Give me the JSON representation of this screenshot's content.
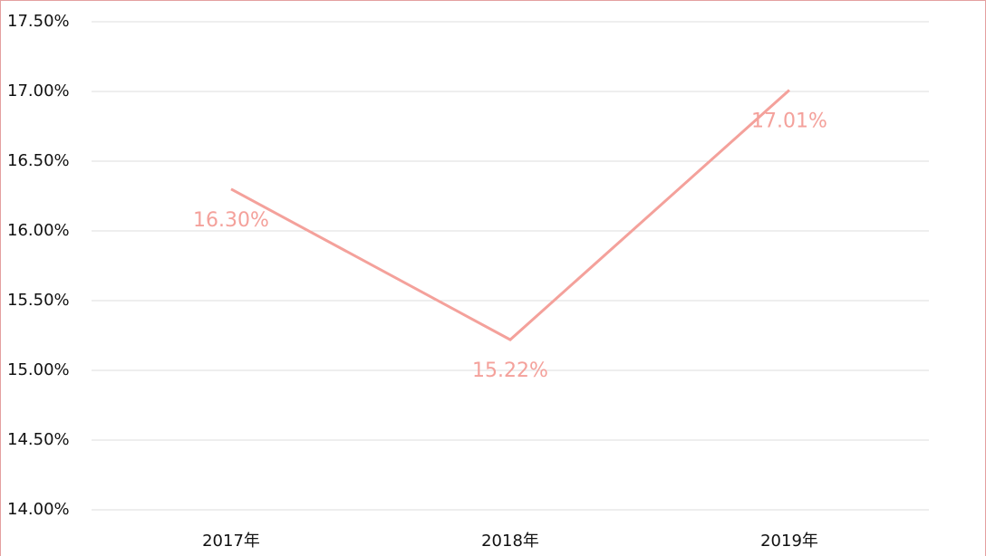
{
  "chart_data": {
    "type": "line",
    "categories": [
      "2017年",
      "2018年",
      "2019年"
    ],
    "series": [
      {
        "color": "#f4a19b",
        "values": [
          16.3,
          15.22,
          17.01
        ],
        "value_labels": [
          "16.30%",
          "15.22%",
          "17.01%"
        ]
      }
    ],
    "ylim": [
      14.0,
      17.5
    ],
    "yticks": [
      {
        "value": 14.0,
        "label": "14.00%"
      },
      {
        "value": 14.5,
        "label": "14.50%"
      },
      {
        "value": 15.0,
        "label": "15.00%"
      },
      {
        "value": 15.5,
        "label": "15.50%"
      },
      {
        "value": 16.0,
        "label": "16.00%"
      },
      {
        "value": 16.5,
        "label": "16.50%"
      },
      {
        "value": 17.0,
        "label": "17.00%"
      },
      {
        "value": 17.5,
        "label": "17.50%"
      }
    ],
    "grid": true
  }
}
